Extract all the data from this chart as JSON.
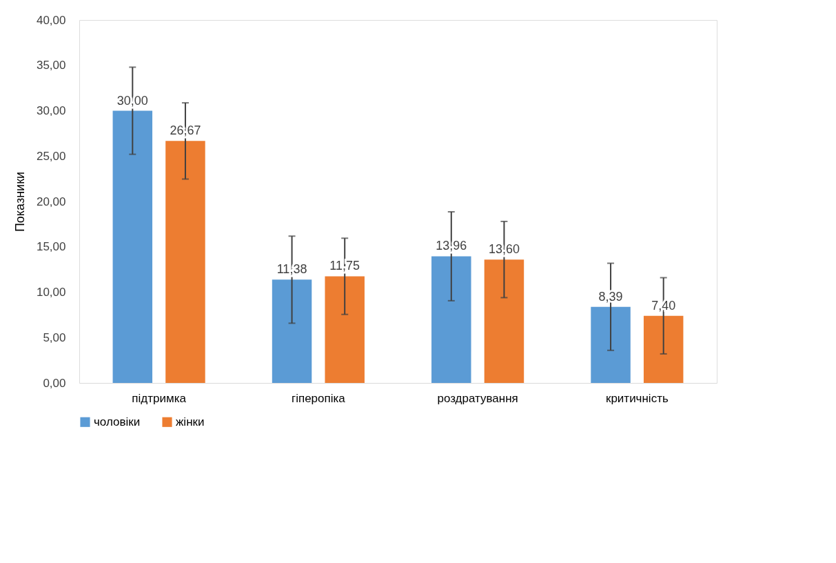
{
  "chart_data": {
    "type": "bar",
    "ylabel": "Показники",
    "categories": [
      "підтримка",
      "гіперопіка",
      "роздратування",
      "критичність"
    ],
    "series": [
      {
        "name": "чоловіки",
        "color": "#5b9bd5",
        "values": [
          30.0,
          11.38,
          13.96,
          8.39
        ],
        "errors": [
          4.8,
          4.8,
          4.9,
          4.8
        ],
        "value_labels": [
          "30,00",
          "11,38",
          "13,96",
          "8,39"
        ]
      },
      {
        "name": "жінки",
        "color": "#ed7d31",
        "values": [
          26.67,
          11.75,
          13.6,
          7.4
        ],
        "errors": [
          4.2,
          4.2,
          4.2,
          4.2
        ],
        "value_labels": [
          "26,67",
          "11,75",
          "13,60",
          "7,40"
        ]
      }
    ],
    "ylim": [
      0,
      40
    ],
    "yticks": [
      {
        "value": 0,
        "label": "0,00"
      },
      {
        "value": 5,
        "label": "5,00"
      },
      {
        "value": 10,
        "label": "10,00"
      },
      {
        "value": 15,
        "label": "15,00"
      },
      {
        "value": 20,
        "label": "20,00"
      },
      {
        "value": 25,
        "label": "25,00"
      },
      {
        "value": 30,
        "label": "30,00"
      },
      {
        "value": 35,
        "label": "35,00"
      },
      {
        "value": 40,
        "label": "40,00"
      }
    ],
    "grid": false,
    "legend": "bottom"
  }
}
